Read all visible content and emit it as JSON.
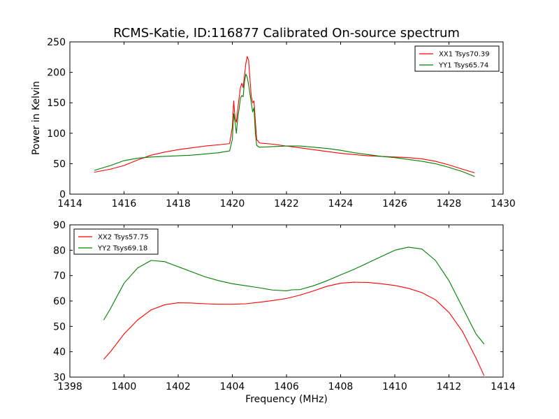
{
  "title": "RCMS-Katie, ID:116877 Calibrated On-source spectrum",
  "chart_data": [
    {
      "type": "line",
      "ylabel": "Power in Kelvin",
      "xlabel": "",
      "xlim": [
        1414,
        1430
      ],
      "ylim": [
        0,
        250
      ],
      "xticks": [
        1414,
        1416,
        1418,
        1420,
        1422,
        1424,
        1426,
        1428,
        1430
      ],
      "yticks": [
        0,
        50,
        100,
        150,
        200,
        250
      ],
      "grid": false,
      "legend_position": "top-right",
      "series": [
        {
          "name": "XX1 Tsys70.39",
          "color": "#ff0000",
          "points": [
            [
              1414.9,
              36
            ],
            [
              1415.5,
              41
            ],
            [
              1416,
              47
            ],
            [
              1416.5,
              56
            ],
            [
              1417,
              64
            ],
            [
              1417.5,
              69
            ],
            [
              1418,
              73
            ],
            [
              1418.5,
              76
            ],
            [
              1419,
              79
            ],
            [
              1419.5,
              81
            ],
            [
              1419.9,
              83
            ],
            [
              1420.0,
              110
            ],
            [
              1420.05,
              153
            ],
            [
              1420.1,
              125
            ],
            [
              1420.15,
              118
            ],
            [
              1420.2,
              140
            ],
            [
              1420.25,
              158
            ],
            [
              1420.3,
              175
            ],
            [
              1420.35,
              182
            ],
            [
              1420.4,
              175
            ],
            [
              1420.45,
              195
            ],
            [
              1420.5,
              215
            ],
            [
              1420.55,
              226
            ],
            [
              1420.6,
              220
            ],
            [
              1420.65,
              190
            ],
            [
              1420.7,
              160
            ],
            [
              1420.75,
              150
            ],
            [
              1420.8,
              153
            ],
            [
              1420.85,
              120
            ],
            [
              1420.9,
              90
            ],
            [
              1421,
              84
            ],
            [
              1421.5,
              82
            ],
            [
              1422,
              79
            ],
            [
              1422.5,
              76
            ],
            [
              1423,
              73
            ],
            [
              1423.5,
              70
            ],
            [
              1424,
              67
            ],
            [
              1424.5,
              65
            ],
            [
              1425,
              63
            ],
            [
              1425.5,
              62
            ],
            [
              1426,
              61
            ],
            [
              1426.5,
              60
            ],
            [
              1427,
              58
            ],
            [
              1427.5,
              54
            ],
            [
              1428,
              48
            ],
            [
              1428.5,
              41
            ],
            [
              1428.95,
              35
            ]
          ]
        },
        {
          "name": "YY1 Tsys65.74",
          "color": "#008000",
          "points": [
            [
              1414.9,
              39
            ],
            [
              1415.5,
              47
            ],
            [
              1416,
              55
            ],
            [
              1416.5,
              59
            ],
            [
              1417,
              61
            ],
            [
              1417.5,
              62
            ],
            [
              1418,
              63
            ],
            [
              1418.5,
              64
            ],
            [
              1419,
              66
            ],
            [
              1419.5,
              68
            ],
            [
              1419.9,
              71
            ],
            [
              1420.0,
              90
            ],
            [
              1420.05,
              132
            ],
            [
              1420.1,
              118
            ],
            [
              1420.15,
              100
            ],
            [
              1420.2,
              125
            ],
            [
              1420.25,
              140
            ],
            [
              1420.3,
              158
            ],
            [
              1420.35,
              162
            ],
            [
              1420.4,
              160
            ],
            [
              1420.45,
              185
            ],
            [
              1420.5,
              197
            ],
            [
              1420.55,
              192
            ],
            [
              1420.6,
              180
            ],
            [
              1420.65,
              165
            ],
            [
              1420.7,
              150
            ],
            [
              1420.75,
              135
            ],
            [
              1420.8,
              142
            ],
            [
              1420.85,
              100
            ],
            [
              1420.9,
              80
            ],
            [
              1421,
              77
            ],
            [
              1421.5,
              78
            ],
            [
              1422,
              79
            ],
            [
              1422.5,
              79
            ],
            [
              1423,
              77
            ],
            [
              1423.5,
              75
            ],
            [
              1424,
              72
            ],
            [
              1424.5,
              68
            ],
            [
              1425,
              65
            ],
            [
              1425.5,
              62
            ],
            [
              1426,
              60
            ],
            [
              1426.5,
              57
            ],
            [
              1427,
              54
            ],
            [
              1427.5,
              50
            ],
            [
              1428,
              44
            ],
            [
              1428.5,
              37
            ],
            [
              1428.95,
              29
            ]
          ]
        }
      ]
    },
    {
      "type": "line",
      "ylabel": "",
      "xlabel": "Frequency (MHz)",
      "xlim": [
        1398,
        1414
      ],
      "ylim": [
        30,
        90
      ],
      "xticks": [
        1398,
        1400,
        1402,
        1404,
        1406,
        1408,
        1410,
        1412,
        1414
      ],
      "yticks": [
        30,
        40,
        50,
        60,
        70,
        80,
        90
      ],
      "grid": false,
      "legend_position": "top-left",
      "series": [
        {
          "name": "XX2 Tsys57.75",
          "color": "#ff0000",
          "points": [
            [
              1399.25,
              37
            ],
            [
              1399.5,
              40
            ],
            [
              1400,
              47
            ],
            [
              1400.5,
              52.5
            ],
            [
              1401,
              56.5
            ],
            [
              1401.5,
              58.5
            ],
            [
              1402,
              59.3
            ],
            [
              1402.5,
              59.2
            ],
            [
              1403,
              58.9
            ],
            [
              1403.5,
              58.7
            ],
            [
              1404,
              58.7
            ],
            [
              1404.5,
              58.9
            ],
            [
              1405,
              59.5
            ],
            [
              1405.5,
              60.2
            ],
            [
              1406,
              61
            ],
            [
              1406.5,
              62.3
            ],
            [
              1407,
              64
            ],
            [
              1407.5,
              65.8
            ],
            [
              1408,
              67
            ],
            [
              1408.5,
              67.4
            ],
            [
              1409,
              67.3
            ],
            [
              1409.5,
              66.8
            ],
            [
              1410,
              66.1
            ],
            [
              1410.5,
              65
            ],
            [
              1411,
              63.3
            ],
            [
              1411.5,
              60.5
            ],
            [
              1412,
              55.5
            ],
            [
              1412.5,
              48
            ],
            [
              1413,
              37.5
            ],
            [
              1413.3,
              30.5
            ]
          ]
        },
        {
          "name": "YY2 Tsys69.18",
          "color": "#008000",
          "points": [
            [
              1399.25,
              52.5
            ],
            [
              1399.5,
              57
            ],
            [
              1400,
              67
            ],
            [
              1400.5,
              73
            ],
            [
              1401,
              76
            ],
            [
              1401.5,
              75.5
            ],
            [
              1402,
              73.5
            ],
            [
              1402.5,
              71.5
            ],
            [
              1403,
              69.5
            ],
            [
              1403.5,
              68
            ],
            [
              1404,
              66.8
            ],
            [
              1404.5,
              66
            ],
            [
              1405,
              65.2
            ],
            [
              1405.5,
              64.3
            ],
            [
              1406,
              64
            ],
            [
              1406.2,
              64.4
            ],
            [
              1406.5,
              64.5
            ],
            [
              1407,
              66
            ],
            [
              1407.5,
              68
            ],
            [
              1408,
              70.3
            ],
            [
              1408.5,
              72.5
            ],
            [
              1409,
              75
            ],
            [
              1409.5,
              77.5
            ],
            [
              1410,
              80
            ],
            [
              1410.5,
              81.2
            ],
            [
              1411,
              80.5
            ],
            [
              1411.5,
              76
            ],
            [
              1412,
              68
            ],
            [
              1412.5,
              57.5
            ],
            [
              1413,
              47
            ],
            [
              1413.3,
              43
            ]
          ]
        }
      ]
    }
  ]
}
